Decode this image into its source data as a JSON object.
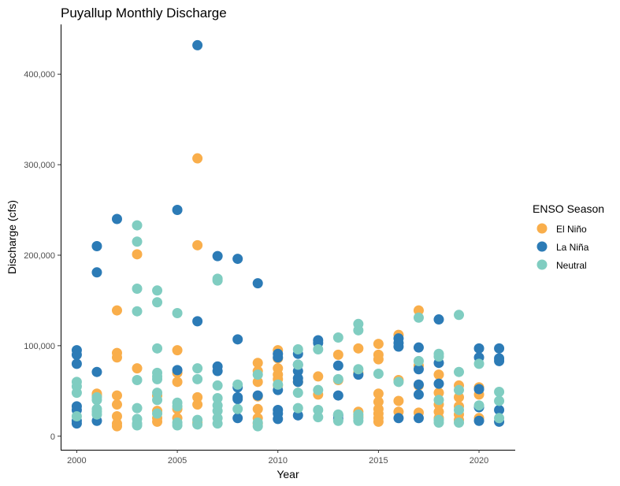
{
  "chart_data": {
    "type": "scatter",
    "title": "Puyallup Monthly Discharge",
    "xlabel": "Year",
    "ylabel": "Discharge (cfs)",
    "xlim": [
      1999.2,
      2021.8
    ],
    "ylim": [
      -15000,
      455000
    ],
    "x_ticks": [
      2000,
      2005,
      2010,
      2015,
      2020
    ],
    "x_tick_labels": [
      "2000",
      "2005",
      "2010",
      "2015",
      "2020"
    ],
    "y_ticks": [
      0,
      100000,
      200000,
      300000,
      400000
    ],
    "y_tick_labels": [
      "0",
      "100,000",
      "200,000",
      "300,000",
      "400,000"
    ],
    "grid": false,
    "legend": {
      "title": "ENSO Season",
      "position": "right",
      "entries": [
        "El Niño",
        "La Niña",
        "Neutral"
      ]
    },
    "series": [
      {
        "name": "El Niño",
        "color": "#F9AE4B",
        "points": [
          [
            2002,
            139000
          ],
          [
            2002,
            92000
          ],
          [
            2002,
            87000
          ],
          [
            2002,
            45000
          ],
          [
            2002,
            35000
          ],
          [
            2002,
            22000
          ],
          [
            2002,
            14000
          ],
          [
            2002,
            11000
          ],
          [
            2003,
            201000
          ],
          [
            2003,
            75000
          ],
          [
            2004,
            45000
          ],
          [
            2004,
            28000
          ],
          [
            2004,
            20000
          ],
          [
            2004,
            16000
          ],
          [
            2005,
            95000
          ],
          [
            2005,
            70000
          ],
          [
            2005,
            60000
          ],
          [
            2005,
            30000
          ],
          [
            2005,
            20000
          ],
          [
            2006,
            307000
          ],
          [
            2006,
            211000
          ],
          [
            2006,
            43000
          ],
          [
            2006,
            35000
          ],
          [
            2006,
            15000
          ],
          [
            2009,
            81000
          ],
          [
            2009,
            72000
          ],
          [
            2009,
            60000
          ],
          [
            2009,
            44000
          ],
          [
            2009,
            30000
          ],
          [
            2009,
            20000
          ],
          [
            2009,
            14000
          ],
          [
            2010,
            95000
          ],
          [
            2010,
            86000
          ],
          [
            2010,
            75000
          ],
          [
            2010,
            68000
          ],
          [
            2010,
            63000
          ],
          [
            2010,
            56000
          ],
          [
            2014,
            97000
          ],
          [
            2014,
            70000
          ],
          [
            2014,
            27000
          ],
          [
            2014,
            22000
          ],
          [
            2015,
            102000
          ],
          [
            2015,
            90000
          ],
          [
            2015,
            85000
          ],
          [
            2015,
            47000
          ],
          [
            2015,
            38000
          ],
          [
            2015,
            30000
          ],
          [
            2015,
            25000
          ],
          [
            2015,
            20000
          ],
          [
            2015,
            16000
          ],
          [
            2018,
            68000
          ],
          [
            2018,
            48000
          ],
          [
            2018,
            35000
          ],
          [
            2018,
            27000
          ],
          [
            2018,
            20000
          ],
          [
            2019,
            56000
          ],
          [
            2019,
            43000
          ],
          [
            2019,
            33000
          ],
          [
            2019,
            24000
          ],
          [
            2019,
            18000
          ],
          [
            2020,
            54000
          ],
          [
            2020,
            46000
          ],
          [
            2020,
            20000
          ],
          [
            2013,
            90000
          ],
          [
            2013,
            62000
          ],
          [
            2016,
            112000
          ],
          [
            2016,
            62000
          ],
          [
            2016,
            39000
          ],
          [
            2016,
            27000
          ],
          [
            2017,
            139000
          ],
          [
            2017,
            78000
          ],
          [
            2017,
            56000
          ],
          [
            2017,
            26000
          ],
          [
            2001,
            47000
          ],
          [
            2001,
            45000
          ],
          [
            2012,
            66000
          ],
          [
            2012,
            46000
          ],
          [
            2011,
            60000
          ]
        ]
      },
      {
        "name": "La Niña",
        "color": "#2C7BB6",
        "points": [
          [
            2000,
            95000
          ],
          [
            2000,
            90000
          ],
          [
            2000,
            80000
          ],
          [
            2000,
            33000
          ],
          [
            2000,
            29000
          ],
          [
            2000,
            17000
          ],
          [
            2000,
            14000
          ],
          [
            2001,
            210000
          ],
          [
            2001,
            181000
          ],
          [
            2001,
            71000
          ],
          [
            2001,
            17000
          ],
          [
            2002,
            240000
          ],
          [
            2005,
            250000
          ],
          [
            2005,
            73000
          ],
          [
            2006,
            432000
          ],
          [
            2006,
            127000
          ],
          [
            2007,
            199000
          ],
          [
            2007,
            77000
          ],
          [
            2007,
            72000
          ],
          [
            2008,
            196000
          ],
          [
            2008,
            107000
          ],
          [
            2008,
            54000
          ],
          [
            2008,
            43000
          ],
          [
            2008,
            41000
          ],
          [
            2008,
            20000
          ],
          [
            2009,
            169000
          ],
          [
            2009,
            45000
          ],
          [
            2010,
            91000
          ],
          [
            2010,
            87000
          ],
          [
            2010,
            51000
          ],
          [
            2010,
            29000
          ],
          [
            2010,
            25000
          ],
          [
            2010,
            19000
          ],
          [
            2011,
            91000
          ],
          [
            2011,
            79000
          ],
          [
            2011,
            72000
          ],
          [
            2011,
            64000
          ],
          [
            2011,
            60000
          ],
          [
            2011,
            23000
          ],
          [
            2012,
            106000
          ],
          [
            2012,
            103000
          ],
          [
            2013,
            78000
          ],
          [
            2013,
            45000
          ],
          [
            2013,
            23000
          ],
          [
            2013,
            19000
          ],
          [
            2014,
            68000
          ],
          [
            2016,
            108000
          ],
          [
            2016,
            103000
          ],
          [
            2016,
            99000
          ],
          [
            2016,
            20000
          ],
          [
            2017,
            98000
          ],
          [
            2017,
            74000
          ],
          [
            2017,
            57000
          ],
          [
            2017,
            46000
          ],
          [
            2017,
            20000
          ],
          [
            2018,
            129000
          ],
          [
            2018,
            81000
          ],
          [
            2018,
            58000
          ],
          [
            2020,
            97000
          ],
          [
            2020,
            87000
          ],
          [
            2020,
            52000
          ],
          [
            2020,
            32000
          ],
          [
            2020,
            17000
          ],
          [
            2021,
            97000
          ],
          [
            2021,
            86000
          ],
          [
            2021,
            83000
          ],
          [
            2021,
            29000
          ],
          [
            2021,
            16000
          ]
        ]
      },
      {
        "name": "Neutral",
        "color": "#80CDC1",
        "points": [
          [
            2000,
            60000
          ],
          [
            2000,
            55000
          ],
          [
            2000,
            48000
          ],
          [
            2000,
            22000
          ],
          [
            2001,
            43000
          ],
          [
            2001,
            40000
          ],
          [
            2001,
            30000
          ],
          [
            2001,
            27000
          ],
          [
            2001,
            24000
          ],
          [
            2003,
            233000
          ],
          [
            2003,
            215000
          ],
          [
            2003,
            163000
          ],
          [
            2003,
            138000
          ],
          [
            2003,
            62000
          ],
          [
            2003,
            31000
          ],
          [
            2003,
            19000
          ],
          [
            2003,
            14000
          ],
          [
            2003,
            12000
          ],
          [
            2004,
            161000
          ],
          [
            2004,
            148000
          ],
          [
            2004,
            97000
          ],
          [
            2004,
            70000
          ],
          [
            2004,
            66000
          ],
          [
            2004,
            63000
          ],
          [
            2004,
            48000
          ],
          [
            2004,
            40000
          ],
          [
            2004,
            25000
          ],
          [
            2005,
            136000
          ],
          [
            2005,
            37000
          ],
          [
            2005,
            33000
          ],
          [
            2005,
            15000
          ],
          [
            2005,
            12000
          ],
          [
            2006,
            75000
          ],
          [
            2006,
            63000
          ],
          [
            2006,
            18000
          ],
          [
            2006,
            13000
          ],
          [
            2007,
            174000
          ],
          [
            2007,
            172000
          ],
          [
            2007,
            56000
          ],
          [
            2007,
            42000
          ],
          [
            2007,
            34000
          ],
          [
            2007,
            28000
          ],
          [
            2007,
            20000
          ],
          [
            2007,
            14000
          ],
          [
            2008,
            57000
          ],
          [
            2008,
            30000
          ],
          [
            2009,
            68000
          ],
          [
            2009,
            15000
          ],
          [
            2009,
            11000
          ],
          [
            2010,
            57000
          ],
          [
            2011,
            96000
          ],
          [
            2011,
            79000
          ],
          [
            2011,
            48000
          ],
          [
            2011,
            31000
          ],
          [
            2012,
            96000
          ],
          [
            2012,
            51000
          ],
          [
            2012,
            29000
          ],
          [
            2012,
            21000
          ],
          [
            2013,
            109000
          ],
          [
            2013,
            63000
          ],
          [
            2013,
            24000
          ],
          [
            2013,
            17000
          ],
          [
            2014,
            124000
          ],
          [
            2014,
            117000
          ],
          [
            2014,
            74000
          ],
          [
            2014,
            24000
          ],
          [
            2014,
            20000
          ],
          [
            2014,
            17000
          ],
          [
            2015,
            69000
          ],
          [
            2016,
            60000
          ],
          [
            2017,
            131000
          ],
          [
            2017,
            83000
          ],
          [
            2018,
            91000
          ],
          [
            2018,
            88000
          ],
          [
            2018,
            40000
          ],
          [
            2018,
            18000
          ],
          [
            2018,
            15000
          ],
          [
            2019,
            134000
          ],
          [
            2019,
            71000
          ],
          [
            2019,
            51000
          ],
          [
            2019,
            29000
          ],
          [
            2019,
            15000
          ],
          [
            2020,
            80000
          ],
          [
            2020,
            34000
          ],
          [
            2021,
            49000
          ],
          [
            2021,
            39000
          ],
          [
            2021,
            20000
          ]
        ]
      }
    ]
  }
}
